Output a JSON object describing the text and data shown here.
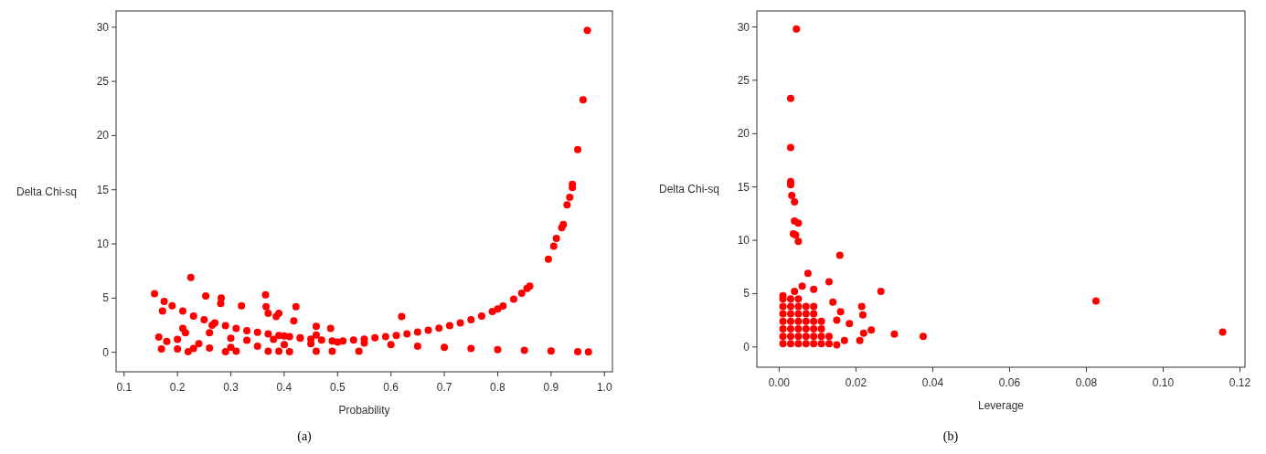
{
  "chart_data": [
    {
      "type": "scatter",
      "xlabel": "Probability",
      "ylabel": "Delta Chi-sq",
      "annotations": [
        "(a)"
      ],
      "color": "#ff0000",
      "marker": "circle",
      "grid": false,
      "xlim": [
        0.085,
        1.015
      ],
      "ylim": [
        -1.8,
        31.5
      ],
      "xticks": [
        0.1,
        0.2,
        0.3,
        0.4,
        0.5,
        0.6,
        0.7,
        0.8,
        0.9,
        {
          "value": 1,
          "label": "1.0"
        }
      ],
      "yticks": [
        0,
        5,
        10,
        15,
        20,
        25,
        30
      ],
      "x": [
        0.157,
        0.225,
        0.253,
        0.282,
        0.281,
        0.32,
        0.365,
        0.366,
        0.37,
        0.385,
        0.39,
        0.422,
        0.418,
        0.46,
        0.487,
        0.172,
        0.62,
        0.54,
        0.49,
        0.46,
        0.175,
        0.19,
        0.21,
        0.23,
        0.25,
        0.27,
        0.29,
        0.31,
        0.33,
        0.35,
        0.37,
        0.39,
        0.41,
        0.43,
        0.45,
        0.47,
        0.49,
        0.51,
        0.53,
        0.55,
        0.57,
        0.59,
        0.61,
        0.63,
        0.65,
        0.67,
        0.69,
        0.71,
        0.73,
        0.75,
        0.77,
        0.79,
        0.8,
        0.81,
        0.83,
        0.845,
        0.855,
        0.86,
        0.895,
        0.905,
        0.91,
        0.92,
        0.923,
        0.93,
        0.935,
        0.94,
        0.94,
        0.95,
        0.96,
        0.968,
        0.17,
        0.2,
        0.23,
        0.26,
        0.3,
        0.35,
        0.4,
        0.45,
        0.5,
        0.55,
        0.6,
        0.65,
        0.7,
        0.75,
        0.8,
        0.85,
        0.9,
        0.95,
        0.97,
        0.165,
        0.18,
        0.2,
        0.21,
        0.215,
        0.22,
        0.24,
        0.26,
        0.265,
        0.29,
        0.3,
        0.31,
        0.33,
        0.37,
        0.38,
        0.39,
        0.4,
        0.41,
        0.43,
        0.46
      ],
      "values": [
        5.4,
        6.9,
        5.2,
        5.0,
        4.5,
        4.3,
        5.3,
        4.2,
        3.6,
        3.3,
        3.6,
        4.2,
        2.9,
        2.4,
        2.2,
        3.8,
        3.3,
        0.1,
        0.1,
        0.1,
        4.7,
        4.3,
        3.8,
        3.35,
        3.0,
        2.7,
        2.45,
        2.2,
        2.0,
        1.85,
        1.7,
        1.55,
        1.45,
        1.33,
        1.22,
        1.13,
        1.04,
        1.04,
        1.13,
        1.22,
        1.33,
        1.44,
        1.56,
        1.7,
        1.86,
        2.03,
        2.23,
        2.45,
        2.7,
        3.0,
        3.35,
        3.76,
        4.0,
        4.26,
        4.9,
        5.45,
        5.9,
        6.1,
        8.6,
        9.8,
        10.5,
        11.5,
        11.8,
        13.6,
        14.3,
        15.2,
        15.5,
        18.7,
        23.3,
        29.7,
        0.3,
        0.3,
        0.35,
        0.4,
        0.45,
        0.55,
        0.7,
        0.8,
        0.95,
        0.85,
        0.7,
        0.55,
        0.45,
        0.35,
        0.25,
        0.18,
        0.12,
        0.06,
        0.04,
        1.4,
        1.0,
        1.2,
        2.2,
        1.8,
        0.05,
        0.8,
        1.8,
        2.5,
        0.05,
        1.3,
        0.1,
        1.1,
        0.1,
        1.2,
        0.1,
        1.5,
        0.05,
        1.3,
        1.6
      ]
    },
    {
      "type": "scatter",
      "xlabel": "Leverage",
      "ylabel": "Delta Chi-sq",
      "annotations": [
        "(b)"
      ],
      "color": "#ff0000",
      "marker": "circle",
      "grid": false,
      "xlim": [
        -0.0058,
        0.1213
      ],
      "ylim": [
        -1.9,
        31.5
      ],
      "xticks": [
        {
          "value": 0,
          "label": "0.00"
        },
        0.02,
        0.04,
        0.06,
        0.08,
        {
          "value": 0.1,
          "label": "0.10"
        },
        0.12
      ],
      "yticks": [
        0,
        5,
        10,
        15,
        20,
        25,
        30
      ],
      "x": [
        0.0045,
        0.003,
        0.003,
        0.003,
        0.003,
        0.0033,
        0.004,
        0.004,
        0.005,
        0.0037,
        0.0043,
        0.005,
        0.0075,
        0.0158,
        0.013,
        0.0265,
        0.0825,
        0.1155,
        0.0375,
        0.03,
        0.024,
        0.022,
        0.0215,
        0.0218,
        0.0183,
        0.021,
        0.017,
        0.015,
        0.014,
        0.016,
        0.015,
        0.009,
        0.006,
        0.004,
        0.001,
        0.001,
        0.001,
        0.001,
        0.001,
        0.001,
        0.001,
        0.001,
        0.003,
        0.003,
        0.003,
        0.003,
        0.003,
        0.003,
        0.003,
        0.005,
        0.005,
        0.005,
        0.005,
        0.005,
        0.005,
        0.005,
        0.007,
        0.007,
        0.007,
        0.007,
        0.007,
        0.007,
        0.009,
        0.009,
        0.009,
        0.009,
        0.009,
        0.009,
        0.011,
        0.011,
        0.011,
        0.011,
        0.013,
        0.013
      ],
      "values": [
        29.8,
        23.3,
        18.7,
        15.5,
        15.2,
        14.2,
        13.6,
        11.8,
        11.6,
        10.6,
        10.5,
        9.9,
        6.9,
        8.6,
        6.1,
        5.2,
        4.3,
        1.4,
        1.0,
        1.2,
        1.6,
        1.3,
        3.8,
        3.0,
        2.2,
        0.6,
        0.6,
        0.2,
        4.2,
        3.3,
        2.5,
        5.4,
        5.7,
        5.2,
        4.8,
        0.3,
        1,
        1.7,
        2.4,
        3.1,
        3.8,
        4.5,
        0.3,
        1,
        1.7,
        2.4,
        3.1,
        3.8,
        4.5,
        0.3,
        1,
        1.7,
        2.4,
        3.1,
        3.8,
        4.5,
        0.3,
        1,
        1.7,
        2.4,
        3.1,
        3.8,
        0.3,
        1,
        1.7,
        2.4,
        3.1,
        3.8,
        0.3,
        1,
        1.7,
        2.4,
        0.3,
        1
      ]
    }
  ]
}
